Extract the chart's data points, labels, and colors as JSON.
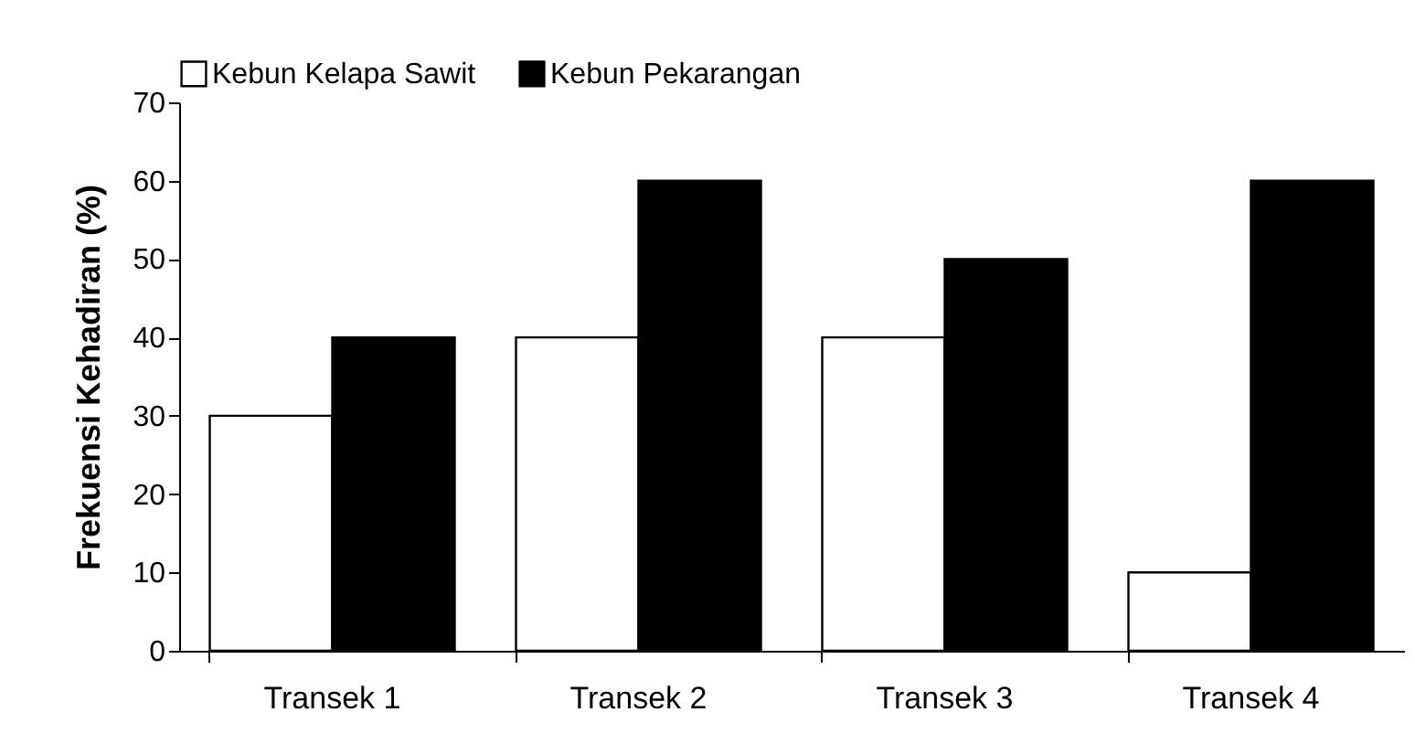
{
  "chart_data": {
    "type": "bar",
    "ylabel": "Frekuensi Kehadiran (%)",
    "categories": [
      "Transek 1",
      "Transek 2",
      "Transek 3",
      "Transek 4"
    ],
    "series": [
      {
        "name": "Kebun Kelapa Sawit",
        "color": "#ffffff",
        "values": [
          30,
          40,
          40,
          10
        ]
      },
      {
        "name": "Kebun Pekarangan",
        "color": "#000000",
        "values": [
          40,
          60,
          50,
          60
        ]
      }
    ],
    "ylim": [
      0,
      70
    ],
    "yticks": [
      0,
      10,
      20,
      30,
      40,
      50,
      60,
      70
    ],
    "grid": false,
    "legend": "top"
  }
}
